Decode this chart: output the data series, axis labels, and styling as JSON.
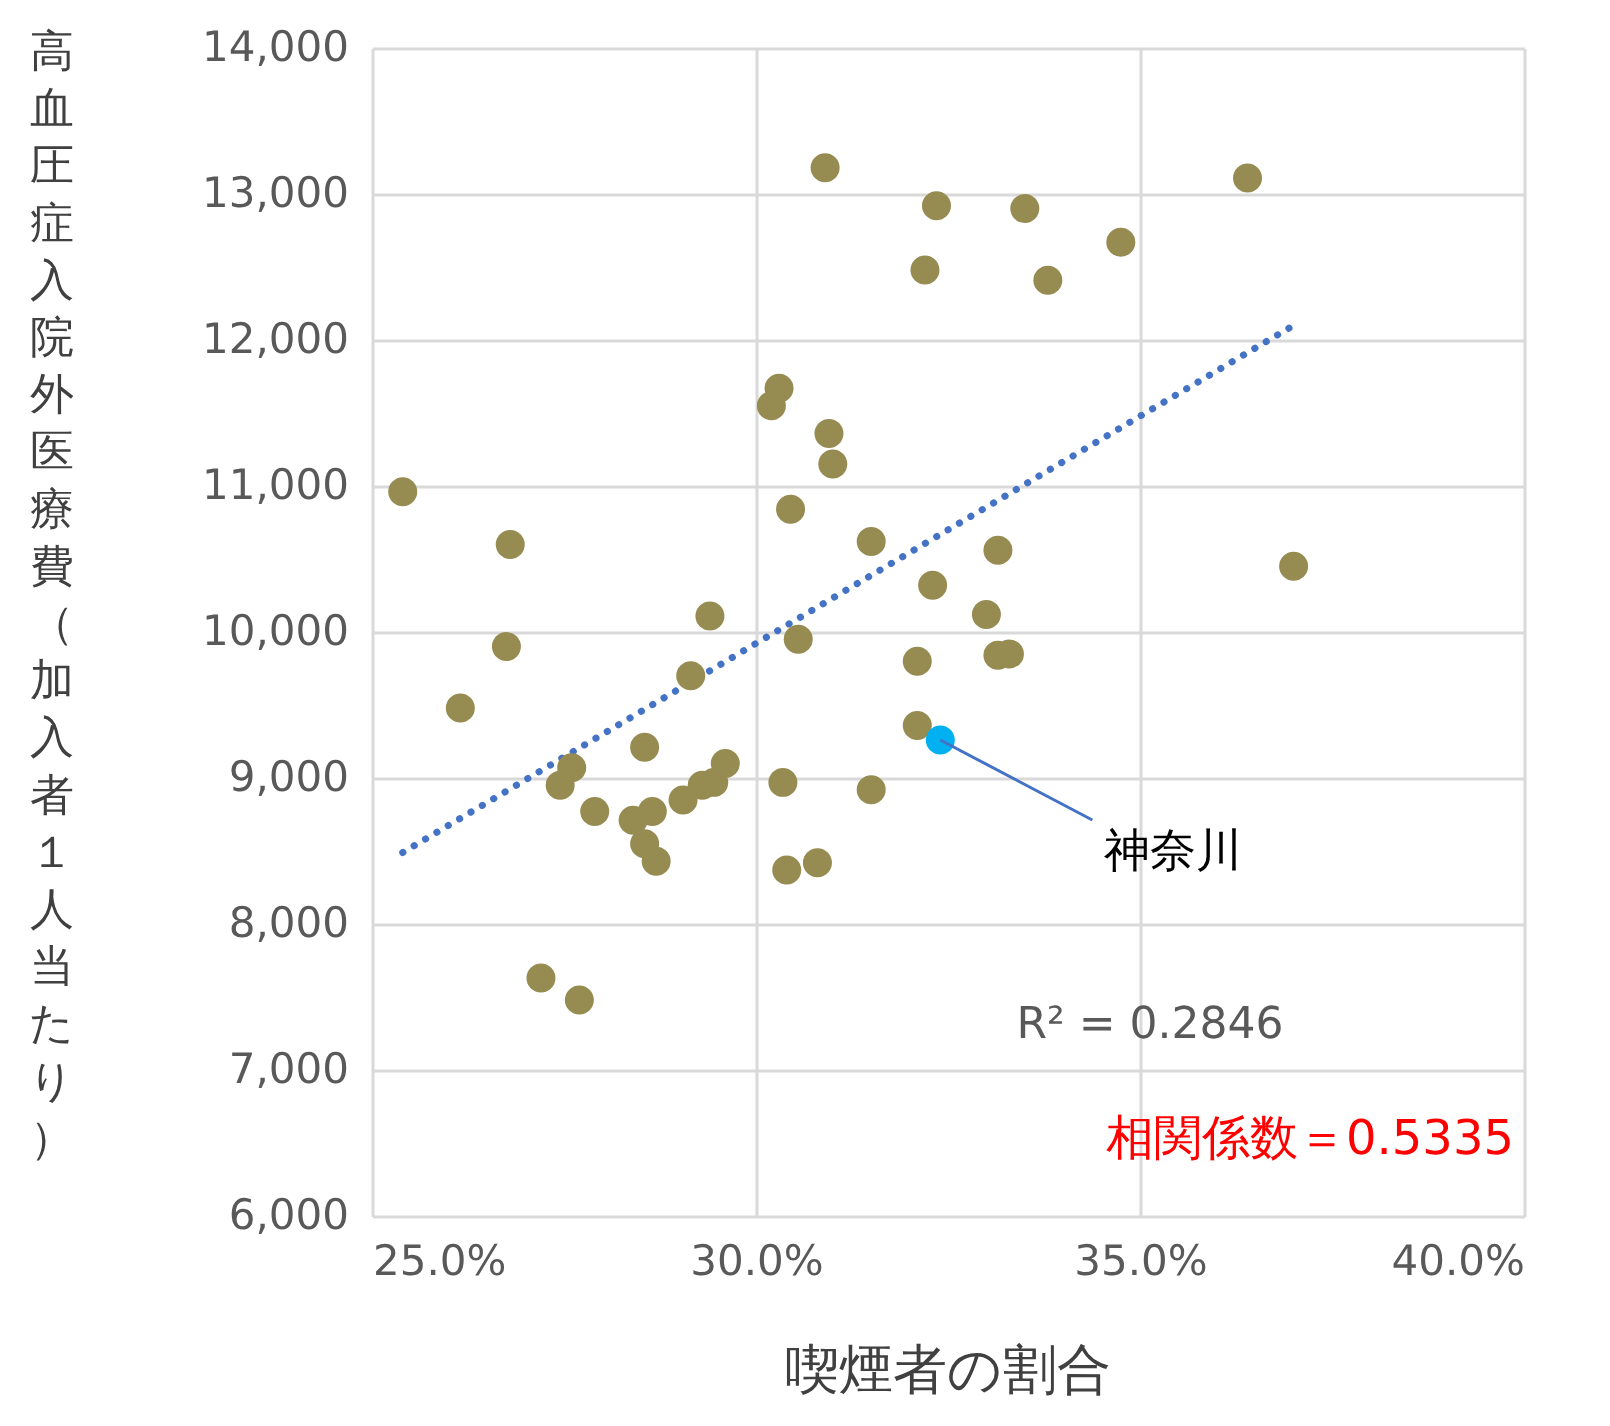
{
  "chart_data": {
    "type": "scatter",
    "xlabel": "喫煙者の割合",
    "ylabel": "高血圧症入院外医療費（加入者１人当たり）",
    "xlim": [
      25,
      40
    ],
    "xticks": [
      {
        "value": 25,
        "label": "25.0%"
      },
      {
        "value": 30,
        "label": "30.0%"
      },
      {
        "value": 35,
        "label": "35.0%"
      },
      {
        "value": 40,
        "label": "40.0%"
      }
    ],
    "ylim": [
      6000,
      14000
    ],
    "yticks": [
      {
        "value": 6000,
        "label": "6,000"
      },
      {
        "value": 7000,
        "label": "7,000"
      },
      {
        "value": 8000,
        "label": "8,000"
      },
      {
        "value": 9000,
        "label": "9,000"
      },
      {
        "value": 10000,
        "label": "10,000"
      },
      {
        "value": 11000,
        "label": "11,000"
      },
      {
        "value": 12000,
        "label": "12,000"
      },
      {
        "value": 13000,
        "label": "13,000"
      },
      {
        "value": 14000,
        "label": "14,000"
      }
    ],
    "grid": true,
    "marker": "circle",
    "series": [
      {
        "type": "line",
        "color": "#4472c4",
        "line_style": "dotted",
        "marker": "none",
        "x": [
          25.4,
          37.0
        ],
        "values": [
          8490,
          12100
        ]
      },
      {
        "color": "#968b51",
        "x": [
          25.4,
          26.15,
          26.8,
          26.75,
          27.2,
          27.7,
          27.6,
          27.45,
          27.9,
          28.4,
          28.55,
          28.55,
          28.65,
          28.7,
          29.15,
          29.05,
          29.4,
          29.3,
          29.45,
          29.6,
          30.3,
          30.2,
          30.95,
          31.0,
          30.45,
          31.5,
          32.3,
          32.1,
          30.55,
          30.9,
          32.35,
          32.2,
          33.5,
          33.8,
          34.75,
          36.4,
          37.0,
          33.15,
          33.0,
          33.15,
          33.3,
          32.1,
          31.5,
          30.35,
          30.4,
          30.8
        ],
        "values": [
          10960,
          9480,
          10600,
          9900,
          7630,
          7480,
          9070,
          8950,
          8770,
          8710,
          9210,
          8550,
          8770,
          8430,
          9700,
          8850,
          10110,
          8950,
          8970,
          9100,
          11670,
          11550,
          11360,
          11150,
          10840,
          10620,
          10320,
          9800,
          9950,
          13180,
          12920,
          12480,
          12900,
          12410,
          12670,
          13110,
          10450,
          10560,
          10120,
          9840,
          9850,
          9360,
          8920,
          8970,
          8370,
          8420
        ]
      },
      {
        "color": "#00b0f0",
        "x": [
          32.4
        ],
        "values": [
          9260
        ]
      }
    ],
    "annotations": [
      {
        "text": "神奈川",
        "x": 32.4,
        "y": 9260
      },
      "R² = 0.2846",
      "相関係数＝0.5335"
    ]
  }
}
